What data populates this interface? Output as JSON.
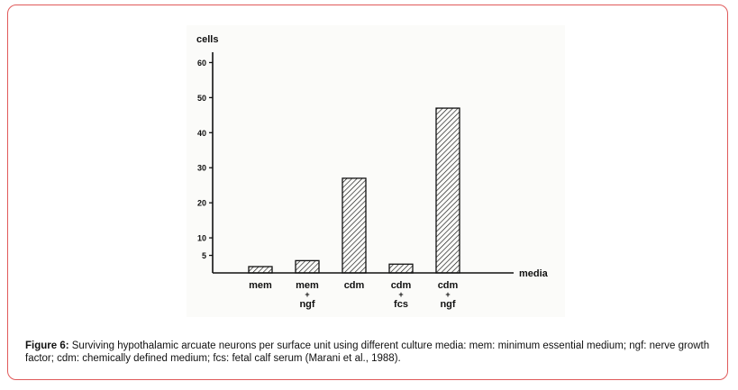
{
  "chart_data": {
    "type": "bar",
    "title": "",
    "xlabel": "media",
    "ylabel": "cells",
    "ylim": [
      0,
      65
    ],
    "yticks": [
      5,
      10,
      20,
      30,
      40,
      50,
      60
    ],
    "categories": [
      {
        "top": "mem",
        "bottom": ""
      },
      {
        "top": "mem",
        "bottom": "ngf"
      },
      {
        "top": "cdm",
        "bottom": ""
      },
      {
        "top": "cdm",
        "bottom": "fcs"
      },
      {
        "top": "cdm",
        "bottom": "ngf"
      }
    ],
    "values": [
      1.8,
      3.5,
      27,
      2.5,
      47
    ],
    "bar_pattern": "diagonal-hatch",
    "grid": false,
    "legend": "none"
  },
  "caption": {
    "label": "Figure 6:",
    "text": " Surviving hypothalamic arcuate neurons per surface unit using different culture media: mem: minimum essential medium; ngf: nerve growth factor; cdm: chemically defined medium; fcs: fetal calf serum (Marani et al., 1988)."
  },
  "colors": {
    "frame_border": "#e05a5a",
    "ink": "#111111"
  }
}
